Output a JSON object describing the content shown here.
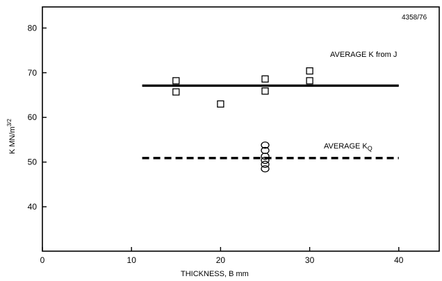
{
  "chart_data": {
    "type": "scatter",
    "figure_id": "4358/76",
    "xlabel": "THICKNESS, B mm",
    "ylabel": "K MN/m",
    "ylabel_sup": "3/2",
    "xlim": [
      0,
      45
    ],
    "ylim": [
      30,
      85
    ],
    "x_ticks": [
      0,
      10,
      20,
      30,
      40
    ],
    "y_ticks": [
      40,
      50,
      60,
      70,
      80
    ],
    "grid": false,
    "series": [
      {
        "marker": "square",
        "points": [
          {
            "x": 15,
            "y": 68.2
          },
          {
            "x": 15,
            "y": 65.7
          },
          {
            "x": 20,
            "y": 63.0
          },
          {
            "x": 25,
            "y": 68.6
          },
          {
            "x": 25,
            "y": 65.9
          },
          {
            "x": 30,
            "y": 70.4
          },
          {
            "x": 30,
            "y": 68.2
          }
        ]
      },
      {
        "marker": "circle",
        "points": [
          {
            "x": 25,
            "y": 53.8
          },
          {
            "x": 25,
            "y": 52.6
          },
          {
            "x": 25,
            "y": 51.3
          },
          {
            "x": 25,
            "y": 50.4
          },
          {
            "x": 25,
            "y": 49.5
          },
          {
            "x": 25,
            "y": 48.5
          }
        ]
      }
    ],
    "reference_lines": [
      {
        "label": "AVERAGE K from J",
        "y": 67.1,
        "x_range": [
          11.2,
          40
        ],
        "style": "solid"
      },
      {
        "label_main": "AVERAGE K",
        "label_sub": "Q",
        "y": 50.9,
        "x_range": [
          11.2,
          40
        ],
        "style": "dashed"
      }
    ]
  }
}
